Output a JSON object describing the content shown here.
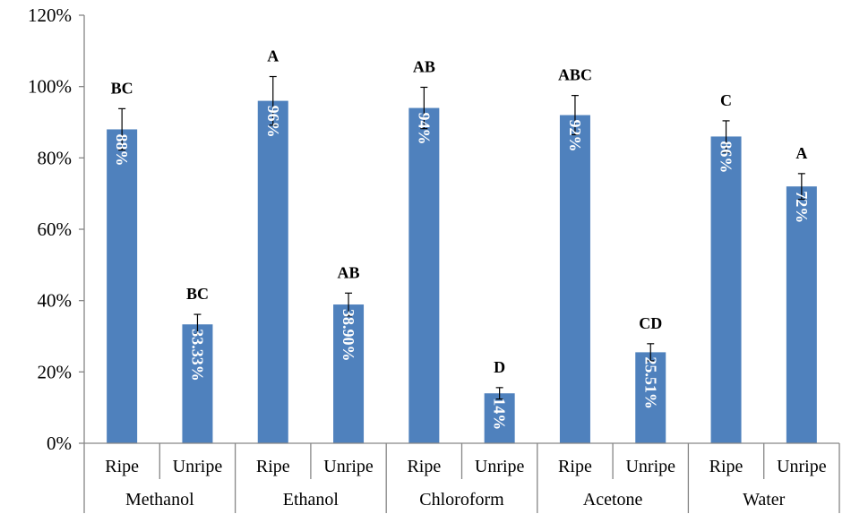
{
  "chart_data": {
    "type": "bar",
    "title": "",
    "xlabel": "",
    "ylabel": "",
    "ylim": [
      0,
      120
    ],
    "y_ticks": [
      "0%",
      "20%",
      "40%",
      "60%",
      "80%",
      "100%",
      "120%"
    ],
    "grid": false,
    "legend": "none",
    "bar_color": "#4f81bd",
    "groups": [
      {
        "name": "Methanol",
        "bars": [
          {
            "category": "Ripe",
            "value": 88,
            "error": 5.8,
            "value_label": "88%",
            "letter": "BC"
          },
          {
            "category": "Unripe",
            "value": 33.33,
            "error": 2.8,
            "value_label": "33.33%",
            "letter": "BC"
          }
        ]
      },
      {
        "name": "Ethanol",
        "bars": [
          {
            "category": "Ripe",
            "value": 96,
            "error": 6.8,
            "value_label": "96%",
            "letter": "A"
          },
          {
            "category": "Unripe",
            "value": 38.9,
            "error": 3.2,
            "value_label": "38.90%",
            "letter": "AB"
          }
        ]
      },
      {
        "name": "Chloroform",
        "bars": [
          {
            "category": "Ripe",
            "value": 94,
            "error": 5.8,
            "value_label": "94%",
            "letter": "AB"
          },
          {
            "category": "Unripe",
            "value": 14,
            "error": 1.6,
            "value_label": "14%",
            "letter": "D"
          }
        ]
      },
      {
        "name": "Acetone",
        "bars": [
          {
            "category": "Ripe",
            "value": 92,
            "error": 5.5,
            "value_label": "92%",
            "letter": "ABC"
          },
          {
            "category": "Unripe",
            "value": 25.51,
            "error": 2.4,
            "value_label": "25.51%",
            "letter": "CD"
          }
        ]
      },
      {
        "name": "Water",
        "bars": [
          {
            "category": "Ripe",
            "value": 86,
            "error": 4.4,
            "value_label": "86%",
            "letter": "C"
          },
          {
            "category": "Unripe",
            "value": 72,
            "error": 3.6,
            "value_label": "72%",
            "letter": "A"
          }
        ]
      }
    ]
  }
}
